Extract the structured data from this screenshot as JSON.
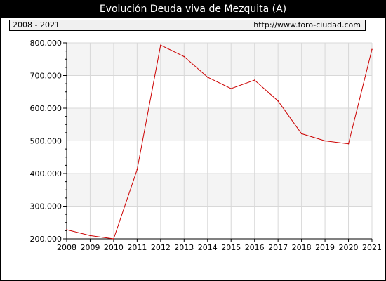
{
  "header": {
    "title": "Evolución Deuda viva de Mezquita (A)",
    "period": "2008 - 2021",
    "url": "http://www.foro-ciudad.com"
  },
  "colors": {
    "line": "#cc0000",
    "band": "#f4f4f4",
    "grid": "#d8d8d8"
  },
  "chart_data": {
    "type": "line",
    "title": "Evolución Deuda viva de Mezquita (A)",
    "xlabel": "",
    "ylabel": "",
    "x": [
      "2008",
      "2009",
      "2010",
      "2011",
      "2012",
      "2013",
      "2014",
      "2015",
      "2016",
      "2017",
      "2018",
      "2019",
      "2020",
      "2021"
    ],
    "series": [
      {
        "values": [
          228000,
          210000,
          200000,
          412000,
          793000,
          758000,
          695000,
          660000,
          686000,
          622000,
          522000,
          500000,
          491000,
          780000
        ]
      }
    ],
    "ylim": [
      200000,
      800000
    ],
    "yticks": [
      200000,
      300000,
      400000,
      500000,
      600000,
      700000,
      800000
    ],
    "ytick_labels": [
      "200.000",
      "300.000",
      "400.000",
      "500.000",
      "600.000",
      "700.000",
      "800.000"
    ],
    "grid": true,
    "legend": "none"
  }
}
